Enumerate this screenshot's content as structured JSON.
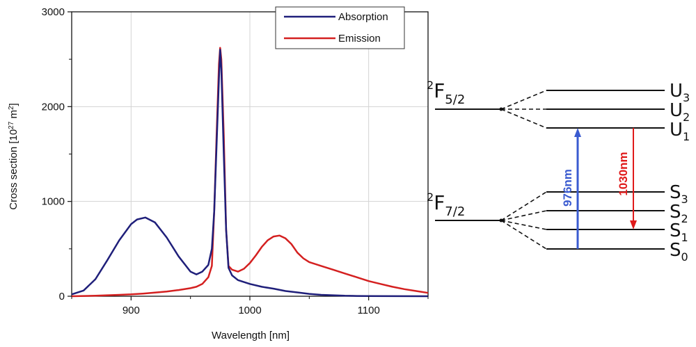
{
  "chart_data": {
    "type": "line",
    "xlabel": "Wavelength [nm]",
    "ylabel": "Cross section [10",
    "ylabel_exp": "27",
    "ylabel_unit": " m",
    "ylabel_unit_exp": "2",
    "ylabel_end": "]",
    "xlim": [
      850,
      1150
    ],
    "ylim": [
      0,
      3000
    ],
    "xticks": [
      900,
      1000,
      1100
    ],
    "yticks": [
      0,
      1000,
      2000,
      3000
    ],
    "grid": true,
    "legend_position": "top-right",
    "series": [
      {
        "name": "Absorption",
        "color": "#1f1f7a",
        "points": [
          [
            850,
            20
          ],
          [
            860,
            60
          ],
          [
            870,
            180
          ],
          [
            880,
            380
          ],
          [
            890,
            590
          ],
          [
            900,
            760
          ],
          [
            905,
            810
          ],
          [
            912,
            830
          ],
          [
            920,
            780
          ],
          [
            930,
            620
          ],
          [
            940,
            420
          ],
          [
            950,
            260
          ],
          [
            955,
            230
          ],
          [
            960,
            260
          ],
          [
            965,
            330
          ],
          [
            968,
            500
          ],
          [
            970,
            900
          ],
          [
            972,
            1600
          ],
          [
            974,
            2300
          ],
          [
            975,
            2600
          ],
          [
            976,
            2400
          ],
          [
            978,
            1500
          ],
          [
            980,
            700
          ],
          [
            982,
            300
          ],
          [
            985,
            220
          ],
          [
            990,
            170
          ],
          [
            1000,
            130
          ],
          [
            1010,
            100
          ],
          [
            1020,
            80
          ],
          [
            1030,
            55
          ],
          [
            1040,
            40
          ],
          [
            1050,
            25
          ],
          [
            1060,
            15
          ],
          [
            1070,
            10
          ],
          [
            1080,
            5
          ],
          [
            1090,
            3
          ],
          [
            1100,
            2
          ],
          [
            1150,
            0
          ]
        ]
      },
      {
        "name": "Emission",
        "color": "#d42020",
        "points": [
          [
            850,
            0
          ],
          [
            870,
            5
          ],
          [
            880,
            10
          ],
          [
            890,
            15
          ],
          [
            900,
            20
          ],
          [
            910,
            28
          ],
          [
            920,
            38
          ],
          [
            930,
            50
          ],
          [
            940,
            65
          ],
          [
            950,
            85
          ],
          [
            955,
            100
          ],
          [
            960,
            130
          ],
          [
            965,
            200
          ],
          [
            968,
            320
          ],
          [
            970,
            900
          ],
          [
            972,
            1700
          ],
          [
            974,
            2450
          ],
          [
            975,
            2620
          ],
          [
            976,
            2500
          ],
          [
            978,
            1700
          ],
          [
            980,
            700
          ],
          [
            982,
            320
          ],
          [
            985,
            280
          ],
          [
            990,
            260
          ],
          [
            995,
            290
          ],
          [
            1000,
            350
          ],
          [
            1005,
            430
          ],
          [
            1010,
            520
          ],
          [
            1015,
            590
          ],
          [
            1020,
            630
          ],
          [
            1025,
            640
          ],
          [
            1030,
            610
          ],
          [
            1035,
            550
          ],
          [
            1040,
            460
          ],
          [
            1045,
            400
          ],
          [
            1050,
            360
          ],
          [
            1060,
            320
          ],
          [
            1070,
            280
          ],
          [
            1080,
            240
          ],
          [
            1090,
            200
          ],
          [
            1100,
            160
          ],
          [
            1110,
            130
          ],
          [
            1120,
            100
          ],
          [
            1130,
            75
          ],
          [
            1140,
            55
          ],
          [
            1150,
            35
          ]
        ]
      }
    ]
  },
  "diagram": {
    "manifolds": [
      {
        "base": "F",
        "sup": "2",
        "sub": "5/2",
        "levels": [
          "U",
          "U",
          "U"
        ],
        "level_subs": [
          "3",
          "2",
          "1"
        ]
      },
      {
        "base": "F",
        "sup": "2",
        "sub": "7/2",
        "levels": [
          "S",
          "S",
          "S",
          "S"
        ],
        "level_subs": [
          "3",
          "2",
          "1",
          "0"
        ]
      }
    ],
    "transitions": [
      {
        "label": "976nm",
        "color": "#3a5bd0",
        "direction": "up"
      },
      {
        "label": "1030nm",
        "color": "#e01a1a",
        "direction": "down"
      }
    ]
  }
}
